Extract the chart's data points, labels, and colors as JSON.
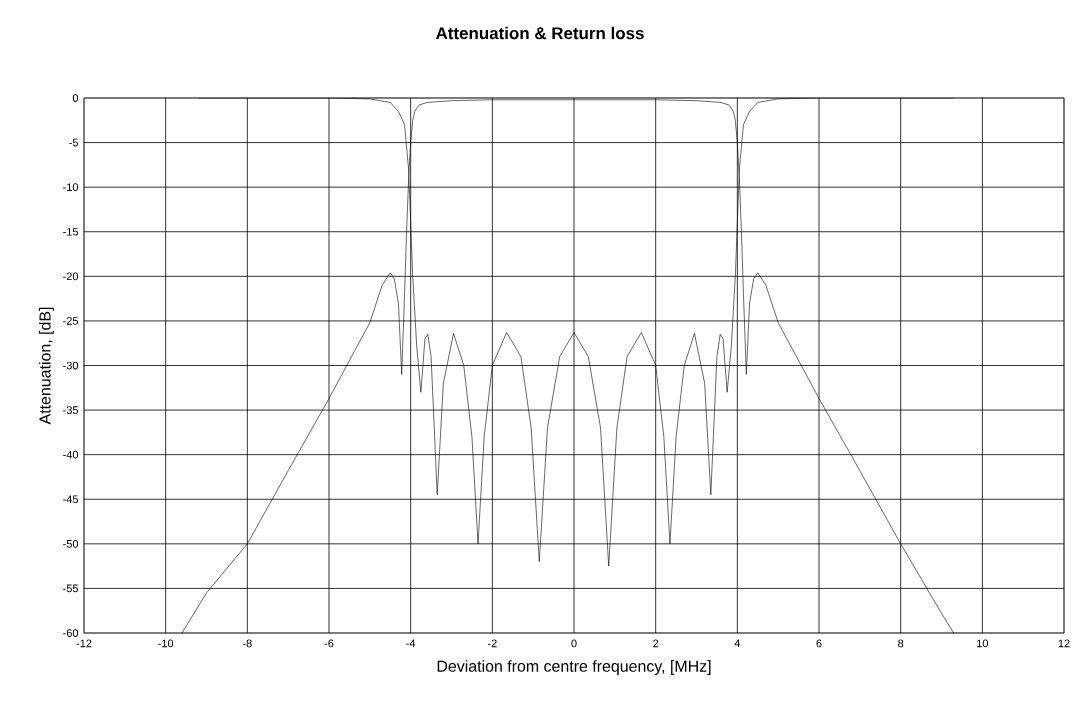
{
  "chart_data": {
    "type": "line",
    "title": "Attenuation & Return loss",
    "xlabel": "Deviation from centre frequency, [MHz]",
    "ylabel": "Attenuation, [dB]",
    "xlim": [
      -12,
      12
    ],
    "xticks": [
      -12,
      -10,
      -8,
      -6,
      -4,
      -2,
      0,
      2,
      4,
      6,
      8,
      10,
      12
    ],
    "ylim": [
      -60,
      0
    ],
    "yticks": [
      0,
      -5,
      -10,
      -15,
      -20,
      -25,
      -30,
      -35,
      -40,
      -45,
      -50,
      -55,
      -60
    ],
    "grid": true,
    "series": [
      {
        "color": "#000000",
        "x": [
          -9.6,
          -9,
          -8,
          -7,
          -6,
          -5,
          -4.7,
          -4.5,
          -4.4,
          -4.3,
          -4.22,
          -4.15,
          -4.1,
          -4.05,
          -4.0,
          -3.95,
          -3.9,
          -3.8,
          -3.6,
          -3.3,
          -3,
          -2,
          -1,
          0,
          1,
          2,
          3,
          3.3,
          3.6,
          3.8,
          3.9,
          3.95,
          4.0,
          4.05,
          4.1,
          4.15,
          4.22,
          4.3,
          4.4,
          4.5,
          4.7,
          5,
          6,
          7,
          8,
          9,
          9.3
        ],
        "values": [
          -60,
          -55.5,
          -50,
          -41.8,
          -33.7,
          -25.2,
          -21,
          -19.6,
          -20.3,
          -23,
          -31,
          -22,
          -15,
          -9,
          -5,
          -2.5,
          -1.5,
          -0.8,
          -0.5,
          -0.4,
          -0.3,
          -0.2,
          -0.2,
          -0.2,
          -0.2,
          -0.2,
          -0.3,
          -0.4,
          -0.5,
          -0.8,
          -1.5,
          -2.5,
          -5,
          -9,
          -15,
          -22,
          -31,
          -23,
          -20.3,
          -19.6,
          -21,
          -25.2,
          -33.7,
          -41.8,
          -50,
          -57.8,
          -60
        ]
      },
      {
        "color": "#000000",
        "x": [
          -9.2,
          -6,
          -5,
          -4.5,
          -4.3,
          -4.15,
          -4.05,
          -3.95,
          -3.85,
          -3.75,
          -3.65,
          -3.58,
          -3.5,
          -3.35,
          -3.2,
          -2.95,
          -2.7,
          -2.5,
          -2.35,
          -2.2,
          -2,
          -1.65,
          -1.3,
          -1.05,
          -0.85,
          -0.65,
          -0.35,
          0,
          0.35,
          0.65,
          0.85,
          1.05,
          1.3,
          1.65,
          2,
          2.2,
          2.35,
          2.5,
          2.7,
          2.95,
          3.2,
          3.35,
          3.5,
          3.58,
          3.65,
          3.75,
          3.85,
          3.95,
          4.05,
          4.15,
          4.3,
          4.5,
          5,
          6,
          9.3
        ],
        "values": [
          0,
          0,
          -0.1,
          -0.5,
          -1.5,
          -3,
          -8,
          -20,
          -28,
          -33,
          -27,
          -26.5,
          -29,
          -44.5,
          -32,
          -26.4,
          -30,
          -38,
          -50,
          -38,
          -30,
          -26.3,
          -29,
          -37,
          -52,
          -37,
          -29,
          -26.3,
          -29,
          -37,
          -52.5,
          -37,
          -29,
          -26.3,
          -30,
          -38,
          -50,
          -38,
          -30,
          -26.4,
          -32,
          -44.5,
          -29,
          -26.5,
          -27,
          -33,
          -28,
          -20,
          -8,
          -3,
          -1.5,
          -0.5,
          -0.1,
          0,
          0
        ]
      }
    ]
  }
}
